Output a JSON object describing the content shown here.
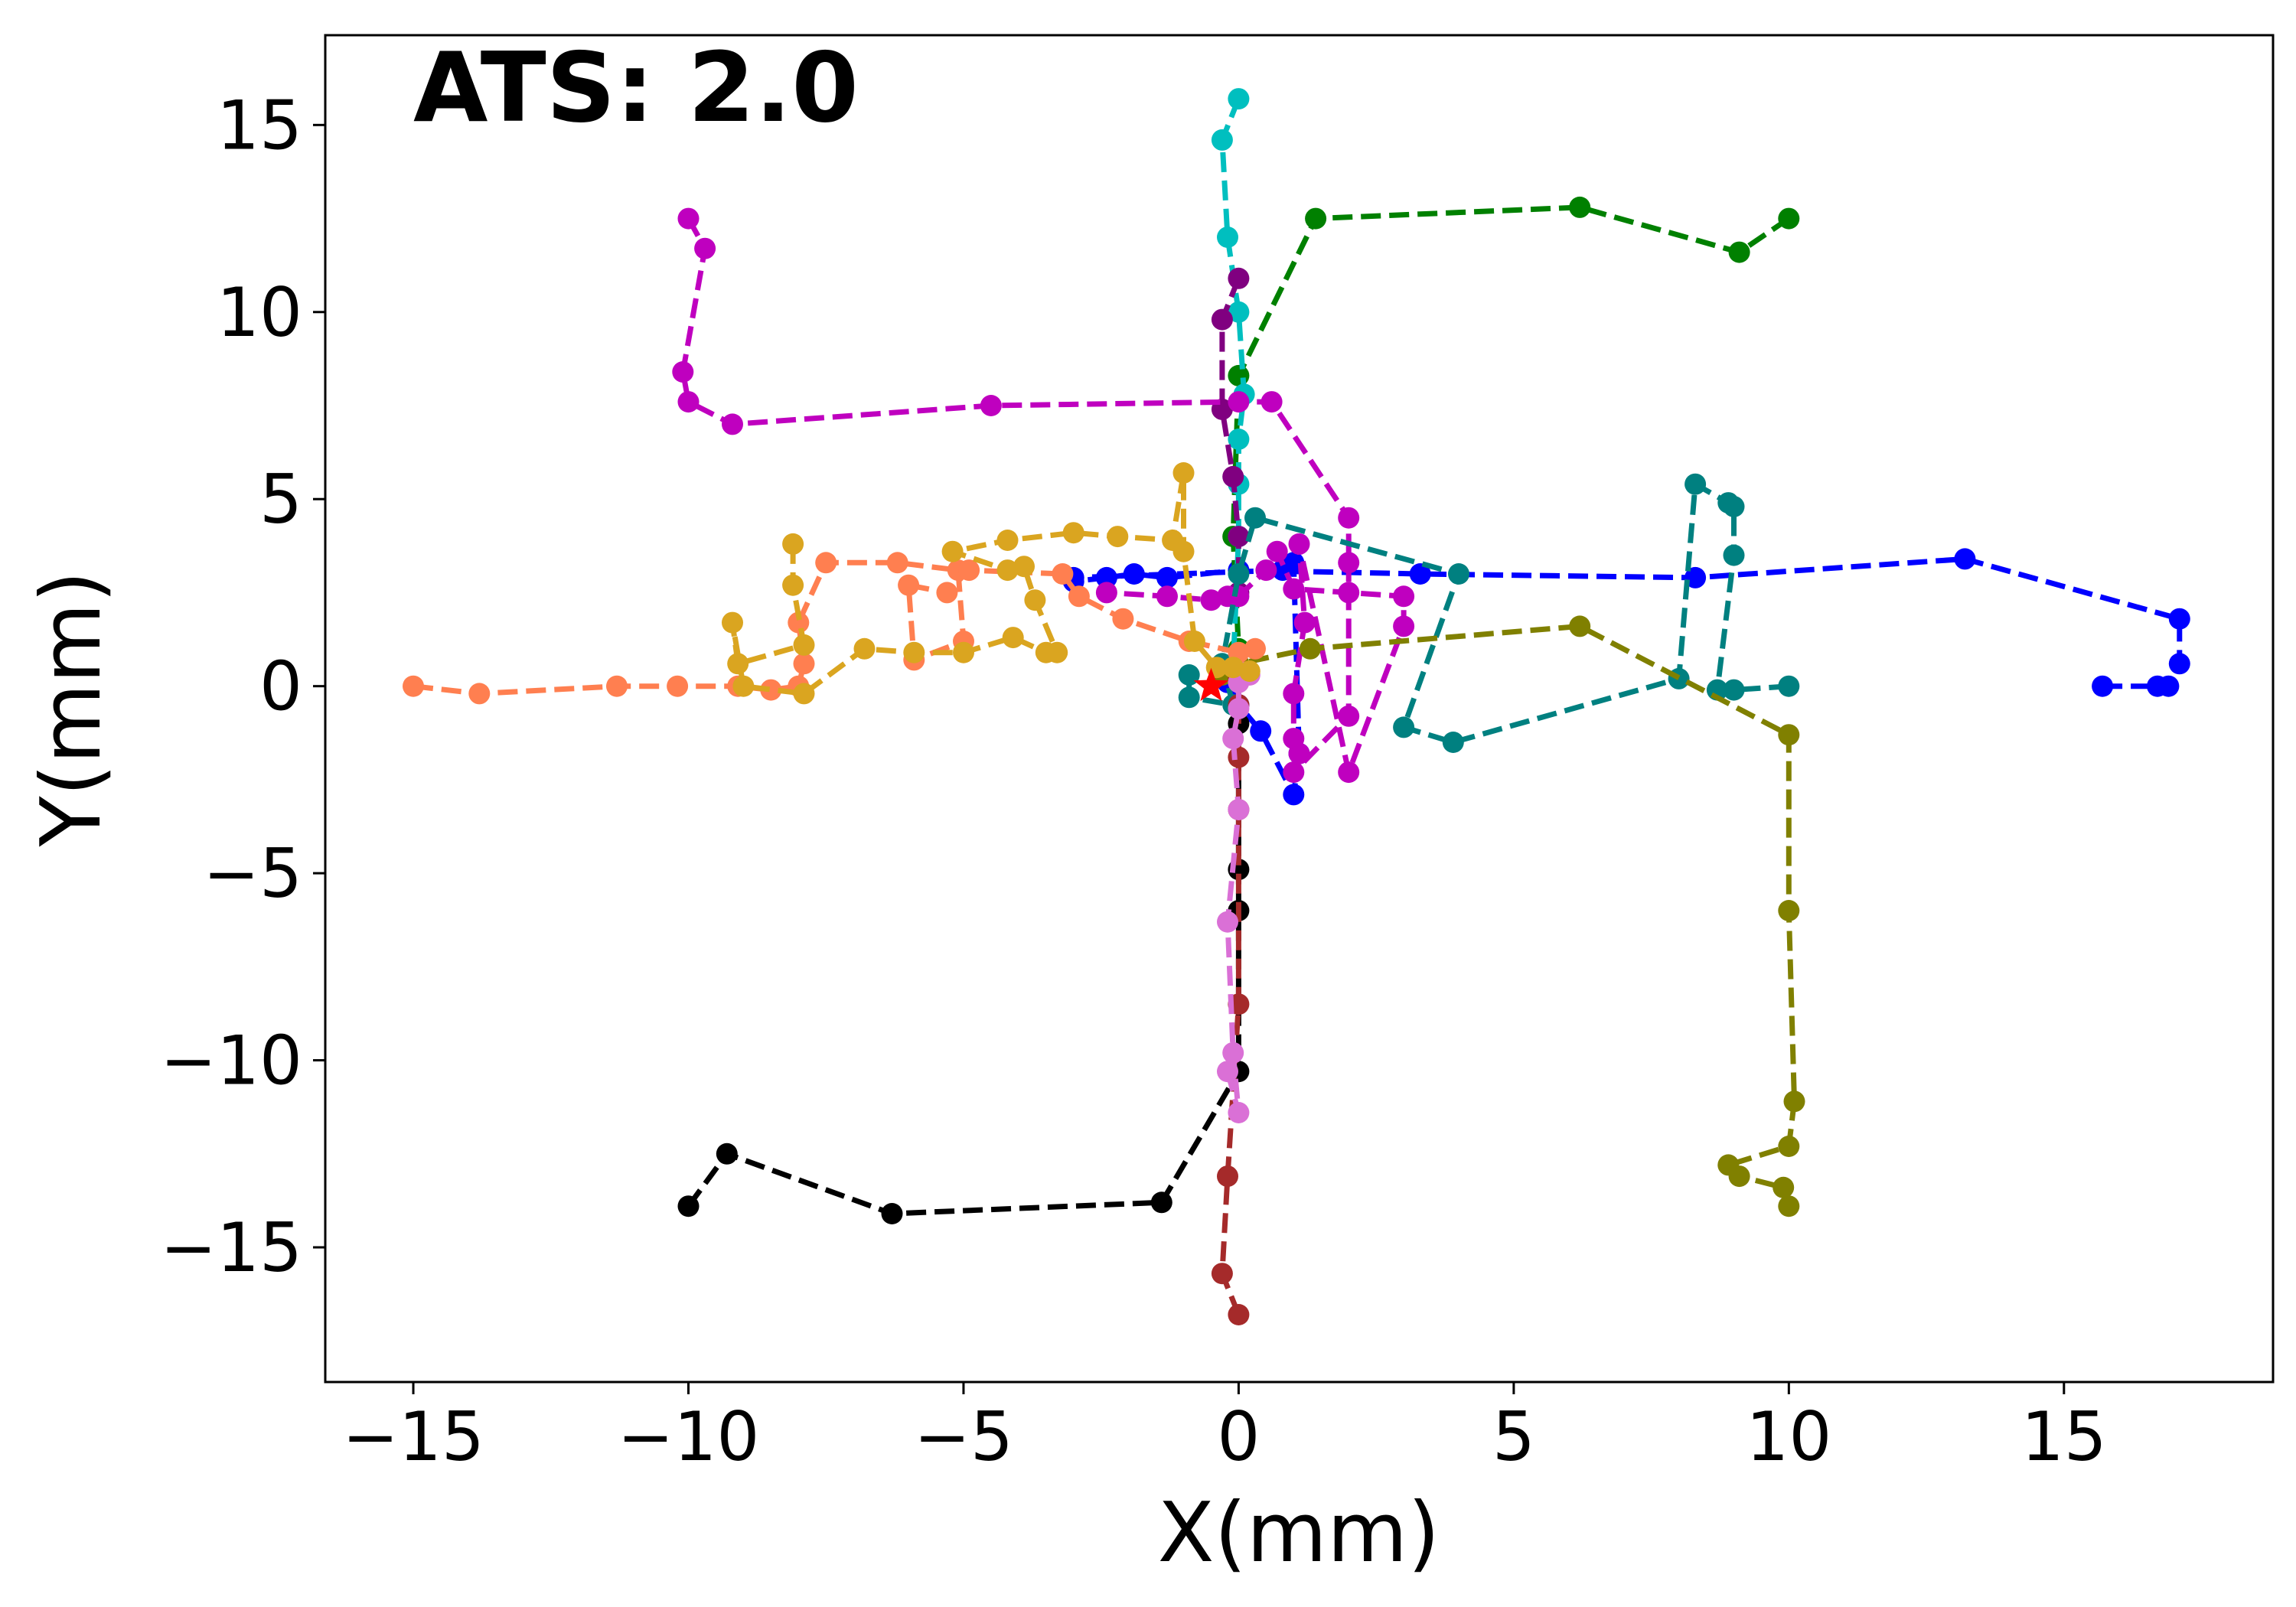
{
  "chart_data": {
    "type": "line",
    "title": "",
    "annotation": "ATS: 2.0",
    "xlabel": "X(mm)",
    "ylabel": "Y(mm)",
    "xlim": [
      -16.6,
      18.8
    ],
    "ylim": [
      -18.6,
      17.4
    ],
    "xticks": [
      -15,
      -10,
      -5,
      0,
      5,
      10,
      15
    ],
    "yticks": [
      -15,
      -10,
      -5,
      0,
      5,
      10,
      15
    ],
    "xtick_labels": [
      "−15",
      "−10",
      "−5",
      "0",
      "5",
      "10",
      "15"
    ],
    "ytick_labels": [
      "−15",
      "−10",
      "−5",
      "0",
      "5",
      "10",
      "15"
    ],
    "grid": false,
    "legend": "none",
    "start_marker": {
      "x": -0.5,
      "y": 0.0,
      "color": "#ff0000"
    },
    "series": [
      {
        "name": "blue",
        "color": "#0000ff",
        "x": [
          15.7,
          16.7,
          16.9,
          17.1,
          17.1,
          13.2,
          8.3,
          3.3,
          0.0,
          -1.3,
          -1.9,
          -2.4,
          -3.0,
          -3.0,
          0.8,
          1.0,
          1.1,
          1.0,
          0.4,
          0.0,
          -0.2
        ],
        "y": [
          0.0,
          0.0,
          0.0,
          0.6,
          1.8,
          3.4,
          2.9,
          3.0,
          3.1,
          2.9,
          3.0,
          2.9,
          2.8,
          2.9,
          3.1,
          3.3,
          -1.8,
          -2.9,
          -1.2,
          -0.5,
          0.1
        ]
      },
      {
        "name": "green",
        "color": "#008000",
        "x": [
          10.0,
          9.1,
          6.2,
          1.4,
          0.0,
          -0.1,
          0.0
        ],
        "y": [
          12.5,
          11.6,
          12.8,
          12.5,
          8.3,
          4.0,
          1.0
        ]
      },
      {
        "name": "cyan",
        "color": "#00bfbf",
        "x": [
          0.0,
          -0.3,
          -0.2,
          0.0,
          0.1,
          0.0,
          0.0,
          0.0,
          -0.1
        ],
        "y": [
          15.7,
          14.6,
          12.0,
          10.0,
          7.8,
          6.6,
          5.4,
          4.0,
          0.5
        ]
      },
      {
        "name": "purple",
        "color": "#800080",
        "x": [
          0.0,
          -0.3,
          -0.3,
          -0.1,
          0.0,
          0.0
        ],
        "y": [
          10.9,
          9.8,
          7.4,
          5.6,
          4.0,
          2.5
        ]
      },
      {
        "name": "magenta",
        "color": "#bf00bf",
        "x": [
          -10.0,
          -9.7,
          -10.1,
          -10.0,
          -9.2,
          -4.5,
          0.0,
          0.6,
          2.0,
          2.0,
          2.0,
          1.0,
          1.1,
          1.0,
          1.0,
          1.2,
          1.1,
          2.0,
          3.0,
          3.0,
          2.0,
          1.0,
          0.7,
          0.5,
          0.0,
          -0.2,
          -0.5,
          -1.3,
          -2.4
        ],
        "y": [
          12.5,
          11.7,
          8.4,
          7.6,
          7.0,
          7.5,
          7.6,
          7.6,
          4.5,
          3.3,
          -0.8,
          -2.3,
          -1.8,
          -1.4,
          -0.2,
          1.7,
          3.8,
          -2.3,
          1.6,
          2.4,
          2.5,
          2.6,
          3.6,
          3.1,
          2.4,
          2.4,
          2.3,
          2.4,
          2.5
        ]
      },
      {
        "name": "teal",
        "color": "#008080",
        "x": [
          10.0,
          9.0,
          8.7,
          9.0,
          9.0,
          8.9,
          8.3,
          8.0,
          3.9,
          3.0,
          4.0,
          0.3,
          0.0,
          -0.3,
          -0.1,
          -0.9,
          -0.9
        ],
        "y": [
          0.0,
          -0.1,
          -0.1,
          3.5,
          4.8,
          4.9,
          5.4,
          0.2,
          -1.5,
          -1.1,
          3.0,
          4.5,
          3.0,
          0.6,
          -0.5,
          -0.3,
          0.3
        ]
      },
      {
        "name": "olive",
        "color": "#808000",
        "x": [
          10.0,
          9.9,
          9.1,
          8.9,
          10.0,
          10.1,
          10.0,
          10.0,
          6.2,
          1.3,
          0.0,
          -0.3
        ],
        "y": [
          -13.9,
          -13.4,
          -13.1,
          -12.8,
          -12.3,
          -11.1,
          -6.0,
          -1.3,
          1.6,
          1.0,
          0.6,
          0.3
        ]
      },
      {
        "name": "black",
        "color": "#000000",
        "x": [
          -10.0,
          -9.3,
          -6.3,
          -1.4,
          0.0,
          0.0,
          0.0,
          0.0
        ],
        "y": [
          -13.9,
          -12.5,
          -14.1,
          -13.8,
          -10.3,
          -6.0,
          -4.9,
          -1.0
        ]
      },
      {
        "name": "brown",
        "color": "#a52a2a",
        "x": [
          0.0,
          -0.3,
          -0.2,
          0.0,
          0.0,
          0.0,
          0.0,
          0.0
        ],
        "y": [
          -16.8,
          -15.7,
          -13.1,
          -8.5,
          -3.3,
          -1.9,
          -0.5,
          0.2
        ]
      },
      {
        "name": "orchid",
        "color": "#da70d6",
        "x": [
          -0.2,
          0.0,
          -0.1,
          -0.2,
          0.0,
          -0.1,
          0.0,
          0.0,
          0.0,
          0.2
        ],
        "y": [
          -10.3,
          -11.4,
          -9.8,
          -6.3,
          -3.3,
          -1.4,
          -0.6,
          0.1,
          0.4,
          0.3
        ]
      },
      {
        "name": "coral",
        "color": "#ff7f50",
        "x": [
          -15.0,
          -13.8,
          -11.3,
          -10.2,
          -9.1,
          -8.5,
          -8.0,
          -7.9,
          -8.0,
          -7.5,
          -6.2,
          -5.1,
          -5.0,
          -5.9,
          -6.0,
          -5.3,
          -4.9,
          -3.2,
          -2.9,
          -2.1,
          -0.9,
          0.0,
          0.3
        ],
        "y": [
          0.0,
          -0.2,
          0.0,
          0.0,
          0.0,
          -0.1,
          0.0,
          0.6,
          1.7,
          3.3,
          3.3,
          3.1,
          1.2,
          0.7,
          2.7,
          2.5,
          3.1,
          3.0,
          2.4,
          1.8,
          1.2,
          0.9,
          1.0
        ]
      },
      {
        "name": "goldenrod",
        "color": "#daa520",
        "x": [
          -8.1,
          -8.1,
          -7.9,
          -9.1,
          -9.2,
          -9.0,
          -7.9,
          -6.8,
          -5.9,
          -5.0,
          -4.1,
          -3.5,
          -3.3,
          -3.7,
          -3.9,
          -4.2,
          -5.2,
          -4.2,
          -3.0,
          -2.2,
          -1.2,
          -1.0,
          -1.0,
          -0.8,
          -0.4,
          -0.1,
          0.2
        ],
        "y": [
          3.8,
          2.7,
          1.1,
          0.6,
          1.7,
          0.0,
          -0.2,
          1.0,
          0.9,
          0.9,
          1.3,
          0.9,
          0.9,
          2.3,
          3.2,
          3.1,
          3.6,
          3.9,
          4.1,
          4.0,
          3.9,
          5.7,
          3.6,
          1.2,
          0.5,
          0.5,
          0.4
        ]
      }
    ]
  }
}
